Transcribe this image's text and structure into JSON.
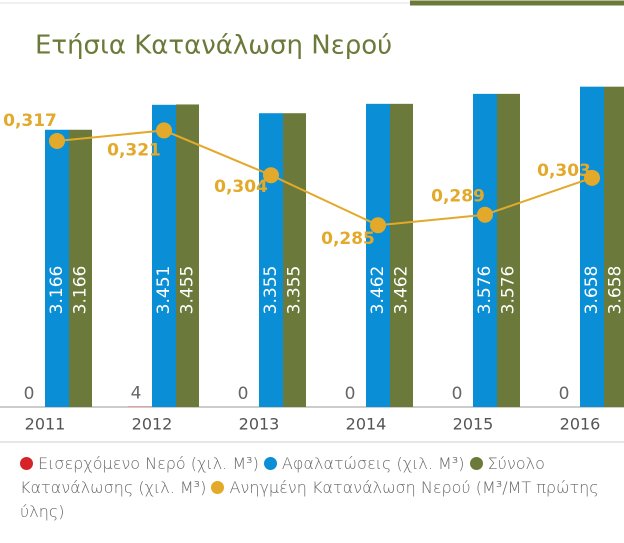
{
  "chart_data": {
    "type": "bar",
    "title": "Ετήσια Κατανάλωση Νερού",
    "categories": [
      "2011",
      "2012",
      "2013",
      "2014",
      "2015",
      "2016"
    ],
    "series": [
      {
        "name": "Εισερχόμενο Νερό (χιλ. M³)",
        "color": "#d6232a",
        "values": [
          0,
          4,
          0,
          0,
          0,
          0
        ]
      },
      {
        "name": "Αφαλατώσεις (χιλ. M³)",
        "color": "#0a8fd6",
        "values": [
          3166,
          3451,
          3355,
          3462,
          3576,
          3658
        ],
        "value_labels": [
          "3.166",
          "3.451",
          "3.355",
          "3.462",
          "3.576",
          "3.658"
        ]
      },
      {
        "name": "Σύνολο Κατανάλωσης (χιλ. M³)",
        "color": "#6b7a3a",
        "values": [
          3166,
          3455,
          3355,
          3462,
          3576,
          3658
        ],
        "value_labels": [
          "3.166",
          "3.455",
          "3.355",
          "3.462",
          "3.576",
          "3.658"
        ]
      },
      {
        "name": "Ανηγμένη Κατανάλωση Νερού (M³/MT πρώτης ύλης)",
        "color": "#e3a92a",
        "type": "line",
        "axis": "y2",
        "values": [
          0.317,
          0.321,
          0.304,
          0.285,
          0.289,
          0.303
        ],
        "value_labels": [
          "0,317",
          "0,321",
          "0,304",
          "0,285",
          "0,289",
          "0,303"
        ]
      }
    ],
    "ylim": [
      0,
      3700
    ],
    "y2lim": [
      0.216,
      0.339
    ]
  }
}
